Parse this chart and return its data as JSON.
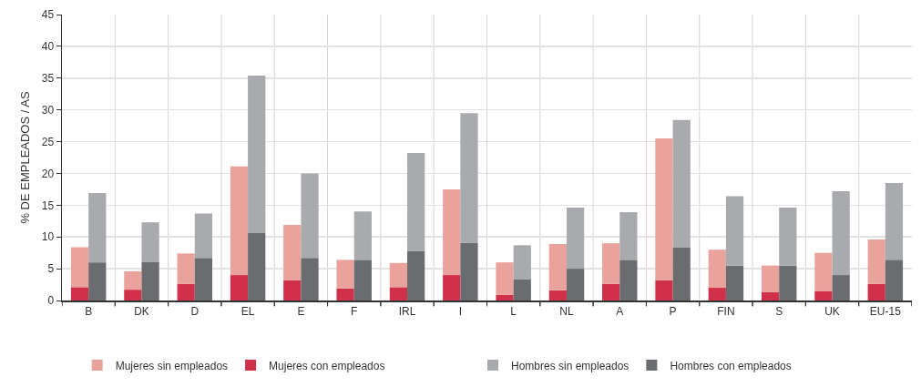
{
  "chart_data": [
    {
      "type": "bar",
      "stacked": true,
      "ylabel": "% DE EMPLEADOS / AS",
      "categories": [
        "B",
        "DK",
        "D",
        "EL",
        "E",
        "F",
        "IRL",
        "I",
        "L",
        "NL",
        "A",
        "P",
        "FIN",
        "S",
        "UK",
        "EU-15"
      ],
      "series": [
        {
          "name": "Mujeres con empleados",
          "color": "#d0304a",
          "values": [
            2.1,
            1.7,
            2.6,
            4.0,
            3.2,
            1.9,
            2.1,
            4.0,
            0.9,
            1.6,
            2.6,
            3.2,
            2.0,
            1.3,
            1.5,
            2.6
          ]
        },
        {
          "name": "Mujeres sin empleados",
          "color": "#e9a29c",
          "values": [
            6.3,
            2.9,
            4.8,
            17.1,
            8.7,
            4.5,
            3.8,
            13.5,
            5.1,
            7.3,
            6.4,
            22.3,
            6.0,
            4.2,
            6.0,
            7.0
          ]
        }
      ],
      "ylim": [
        0,
        45
      ],
      "yticks": [
        0,
        5,
        10,
        15,
        20,
        25,
        30,
        35,
        40,
        45
      ],
      "grid": true,
      "legend": "bottom"
    },
    {
      "type": "bar",
      "stacked": true,
      "categories": [
        null,
        null,
        null,
        null,
        null,
        null,
        null,
        null,
        null,
        null,
        null,
        null,
        null,
        null,
        null,
        null
      ],
      "series": [
        {
          "name": "Hombres con empleados",
          "color": "#6b6c6f",
          "values": [
            6.0,
            6.1,
            6.7,
            10.6,
            6.7,
            6.4,
            7.8,
            9.1,
            3.3,
            5.0,
            6.4,
            8.3,
            5.5,
            5.5,
            4.0,
            6.4
          ]
        },
        {
          "name": "Hombres sin empleados",
          "color": "#a9aaad",
          "values": [
            10.9,
            6.2,
            7.0,
            24.8,
            13.3,
            7.6,
            15.4,
            20.4,
            5.4,
            9.6,
            7.5,
            20.1,
            10.9,
            9.1,
            13.2,
            12.1
          ]
        }
      ],
      "ylim": [
        0,
        45
      ],
      "legend": "bottom"
    }
  ]
}
